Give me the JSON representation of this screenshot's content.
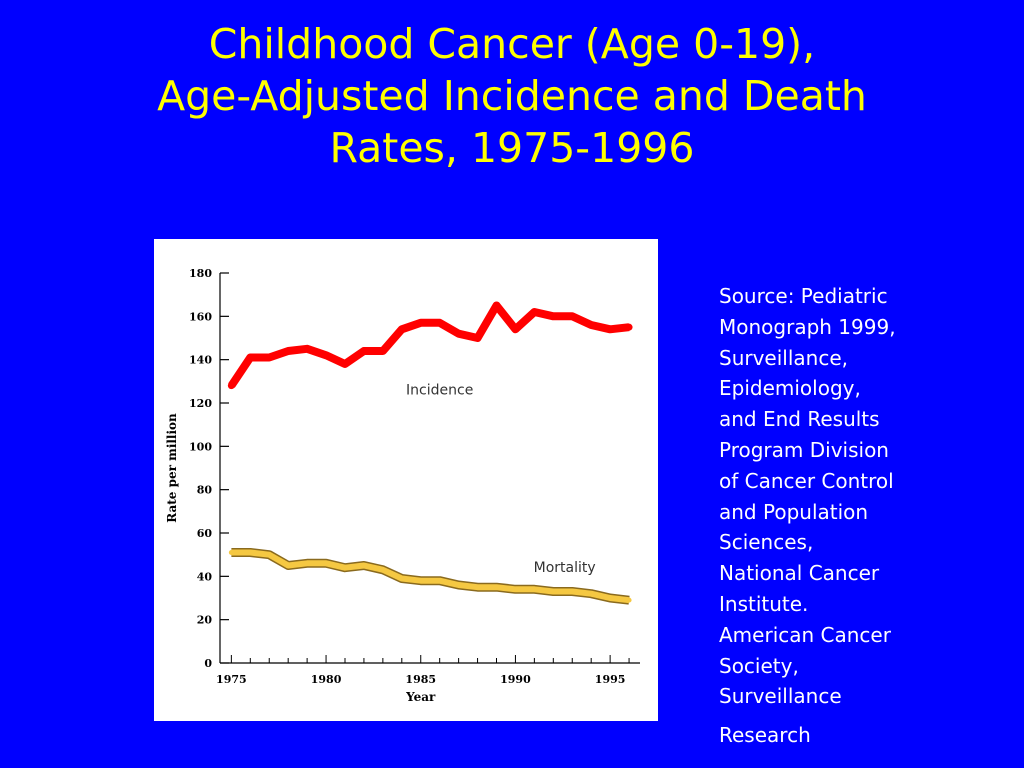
{
  "slide": {
    "title_lines": [
      "Childhood Cancer (Age 0-19),",
      "Age-Adjusted Incidence and Death",
      "Rates, 1975-1996"
    ],
    "source_lines": [
      "Source: Pediatric",
      "Monograph 1999,",
      "Surveillance,",
      "Epidemiology,",
      "and End Results",
      "Program Division",
      "of Cancer Control",
      "and Population",
      "Sciences,",
      "National Cancer",
      "Institute.",
      "American Cancer",
      "Society,",
      "Surveillance",
      "Research"
    ],
    "colors": {
      "background": "#0000FF",
      "title": "#FFFF00",
      "source_text": "#FFFFFF"
    }
  },
  "chart_data": {
    "type": "line",
    "title": "",
    "xlabel": "Year",
    "ylabel": "Rate per million",
    "xlim": [
      1974.4,
      1997
    ],
    "ylim": [
      0,
      180
    ],
    "x_ticks": [
      1975,
      1980,
      1985,
      1990,
      1995
    ],
    "y_ticks": [
      0,
      20,
      40,
      60,
      80,
      100,
      120,
      140,
      160,
      180
    ],
    "grid": false,
    "legend": "inline labels",
    "series": [
      {
        "name": "Incidence",
        "color": "#FF0000",
        "x": [
          1975,
          1976,
          1977,
          1978,
          1979,
          1980,
          1981,
          1982,
          1983,
          1984,
          1985,
          1986,
          1987,
          1988,
          1989,
          1990,
          1991,
          1992,
          1993,
          1994,
          1995,
          1996
        ],
        "y": [
          128,
          141,
          141,
          144,
          145,
          142,
          138,
          144,
          144,
          154,
          157,
          157,
          152,
          150,
          165,
          154,
          162,
          160,
          160,
          156,
          154,
          155
        ]
      },
      {
        "name": "Mortality",
        "color": "#F5C842",
        "x": [
          1975,
          1976,
          1977,
          1978,
          1979,
          1980,
          1981,
          1982,
          1983,
          1984,
          1985,
          1986,
          1987,
          1988,
          1989,
          1990,
          1991,
          1992,
          1993,
          1994,
          1995,
          1996
        ],
        "y": [
          51,
          51,
          50,
          45,
          46,
          46,
          44,
          45,
          43,
          39,
          38,
          38,
          36,
          35,
          35,
          34,
          34,
          33,
          33,
          32,
          30,
          29
        ]
      }
    ]
  }
}
